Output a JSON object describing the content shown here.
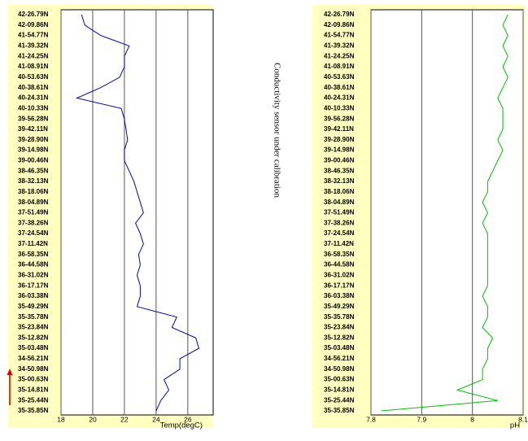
{
  "annotation": "Conductivity sensor under calibration",
  "chart_data": [
    {
      "type": "line",
      "x_label": "Temp(degC)",
      "color": "#0000c8",
      "grid": true,
      "categories": [
        "42-26.79N",
        "42-09.86N",
        "41-54.77N",
        "41-39.32N",
        "41-24.25N",
        "41-08.91N",
        "40-53.63N",
        "40-38.61N",
        "40-24.31N",
        "40-10.33N",
        "39-56.28N",
        "39-42.11N",
        "39-28.90N",
        "39-14.98N",
        "39-00.46N",
        "38-46.35N",
        "38-32.13N",
        "38-18.06N",
        "38-04.89N",
        "37-51.49N",
        "37-38.26N",
        "37-24.54N",
        "37-11.42N",
        "36-58.35N",
        "36-44.58N",
        "36-31.02N",
        "36-17.17N",
        "36-03.38N",
        "35-49.29N",
        "35-35.78N",
        "35-23.84N",
        "35-12.82N",
        "35-03.48N",
        "34-56.21N",
        "34-50.98N",
        "35-00.63N",
        "35-14.81N",
        "35-25.44N",
        "35-35.85N"
      ],
      "values": [
        19.3,
        19.5,
        20.5,
        22.3,
        22.0,
        22.0,
        21.7,
        20.5,
        19.0,
        21.8,
        22.0,
        22.1,
        22.2,
        22.0,
        22.0,
        22.3,
        22.6,
        22.8,
        23.0,
        23.2,
        22.7,
        23.0,
        23.2,
        22.9,
        23.0,
        22.8,
        23.0,
        23.0,
        22.8,
        25.3,
        25.0,
        26.5,
        26.7,
        25.5,
        25.5,
        24.5,
        24.8,
        24.3,
        24.0
      ],
      "xlim": [
        18,
        27.6
      ],
      "xticks": [
        18,
        20,
        22,
        24,
        26
      ]
    },
    {
      "type": "line",
      "x_label": "pH",
      "color": "#00c000",
      "grid": true,
      "categories": [
        "42-26.79N",
        "42-09.86N",
        "41-54.77N",
        "41-39.32N",
        "41-24.25N",
        "41-08.91N",
        "40-53.63N",
        "40-38.61N",
        "40-24.31N",
        "40-10.33N",
        "39-56.28N",
        "39-42.11N",
        "39-28.90N",
        "39-14.98N",
        "39-00.46N",
        "38-46.35N",
        "38-32.13N",
        "38-18.06N",
        "38-04.89N",
        "37-51.49N",
        "37-38.26N",
        "37-24.54N",
        "37-11.42N",
        "36-58.35N",
        "36-44.58N",
        "36-31.02N",
        "36-17.17N",
        "36-03.38N",
        "35-49.29N",
        "35-35.78N",
        "35-23.84N",
        "35-12.82N",
        "35-03.48N",
        "34-56.21N",
        "34-50.98N",
        "35-00.63N",
        "35-14.81N",
        "35-25.44N",
        "35-35.85N"
      ],
      "values": [
        8.07,
        8.06,
        8.07,
        8.06,
        8.07,
        8.06,
        8.07,
        8.06,
        8.05,
        8.06,
        8.06,
        8.06,
        8.05,
        8.06,
        8.05,
        8.04,
        8.03,
        8.03,
        8.02,
        8.03,
        8.02,
        8.03,
        8.03,
        8.03,
        8.03,
        8.03,
        8.03,
        8.02,
        8.03,
        8.03,
        8.02,
        8.04,
        8.03,
        8.03,
        8.02,
        8.02,
        7.97,
        8.05,
        7.82
      ],
      "xlim": [
        7.8,
        8.1
      ],
      "xticks": [
        7.8,
        7.9,
        8,
        8.1
      ]
    }
  ]
}
